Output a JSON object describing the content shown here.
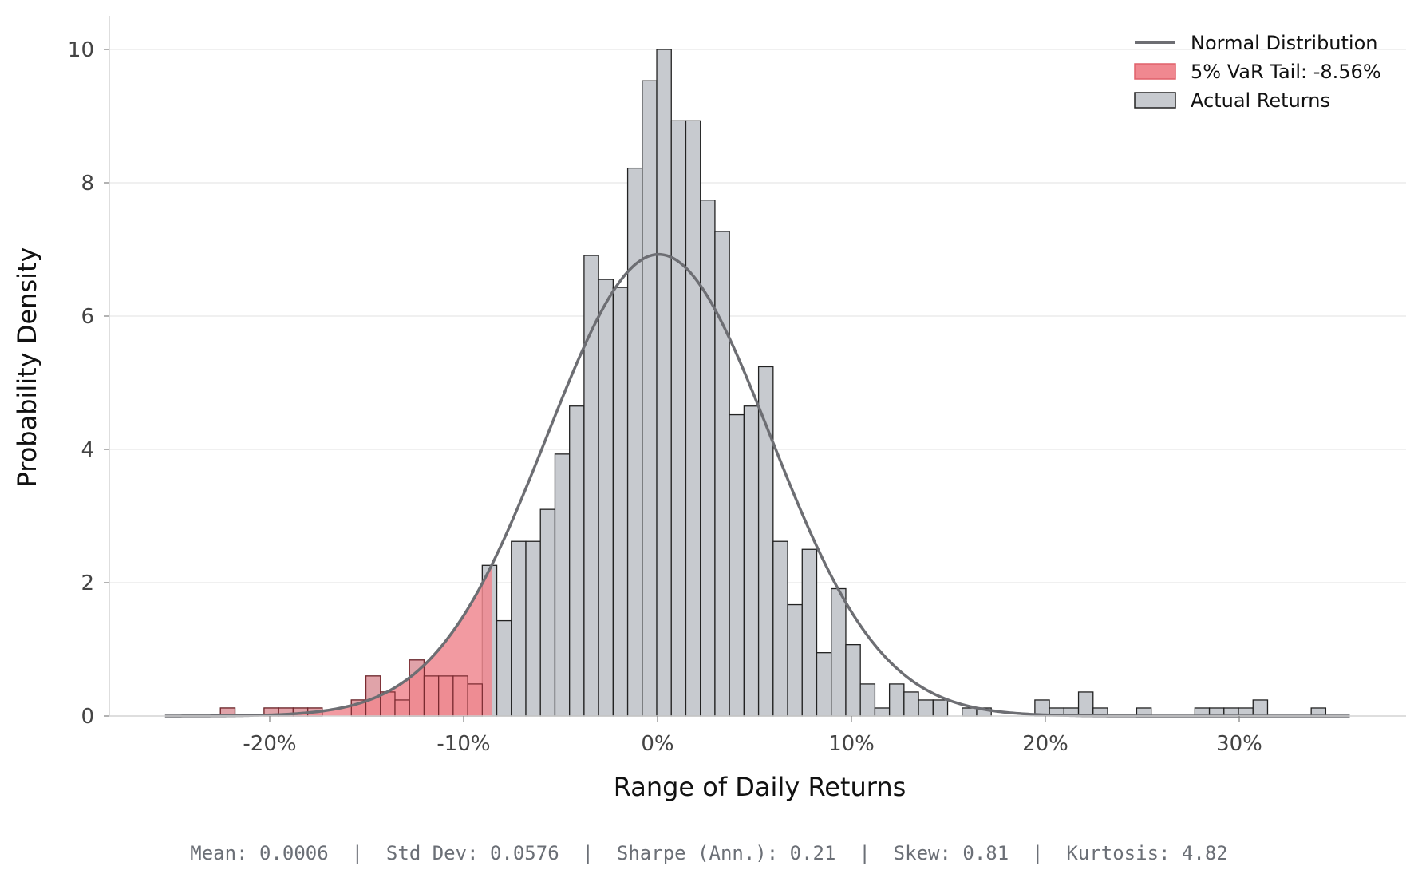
{
  "chart_data": {
    "type": "bar",
    "title": "",
    "xlabel": "Range of Daily Returns",
    "ylabel": "Probability Density",
    "xlim": [
      -0.27,
      0.38
    ],
    "ylim": [
      0,
      10.5
    ],
    "x_ticks": [
      -0.2,
      -0.1,
      0.0,
      0.1,
      0.2,
      0.3
    ],
    "x_tick_labels": [
      "-20%",
      "-10%",
      "0%",
      "10%",
      "20%",
      "30%"
    ],
    "y_ticks": [
      0,
      2,
      4,
      6,
      8,
      10
    ],
    "y_tick_labels": [
      "0",
      "2",
      "4",
      "6",
      "8",
      "10"
    ],
    "grid": "horizontal",
    "legend_position": "top-right",
    "legend": [
      {
        "label": "Normal Distribution",
        "kind": "line",
        "color": "#6d6e73"
      },
      {
        "label": "5% VaR Tail: -8.56%",
        "kind": "patch",
        "color": "#f08890"
      },
      {
        "label": "Actual Returns",
        "kind": "patch",
        "color": "#c7cacf"
      }
    ],
    "histogram": {
      "series_name": "Actual Returns",
      "bin_width": 0.0075,
      "bin_start": -0.2254,
      "densities": [
        0.12,
        0,
        0,
        0.12,
        0.12,
        0.12,
        0.12,
        0,
        0,
        0.24,
        0.6,
        0.36,
        0.24,
        0.84,
        0.6,
        0.6,
        0.6,
        0.48,
        2.26,
        1.43,
        2.62,
        2.62,
        3.1,
        3.93,
        4.65,
        6.91,
        6.55,
        6.43,
        8.22,
        9.53,
        10.0,
        8.93,
        8.93,
        7.74,
        7.27,
        4.52,
        4.65,
        5.24,
        2.62,
        1.67,
        2.5,
        0.95,
        1.91,
        1.07,
        0.48,
        0.12,
        0.48,
        0.36,
        0.24,
        0.24,
        0,
        0.12,
        0.12,
        0,
        0,
        0,
        0.24,
        0.12,
        0.12,
        0.36,
        0.12,
        0,
        0,
        0.12,
        0,
        0,
        0,
        0.12,
        0.12,
        0.12,
        0.12,
        0.24,
        0,
        0,
        0,
        0.12
      ],
      "fill_color": "#c7cacf",
      "edge_color": "#222222"
    },
    "var_tail": {
      "label": "5% VaR Tail: -8.56%",
      "threshold": -0.0856,
      "fill_color": "#f08890"
    },
    "normal_curve": {
      "series_name": "Normal Distribution",
      "mean": 0.0006,
      "std": 0.0576,
      "x_range": [
        -0.254,
        0.357
      ],
      "color": "#6d6e73"
    },
    "stats": {
      "mean": "0.0006",
      "std_dev": "0.0576",
      "sharpe_ann": "0.21",
      "skew": "0.81",
      "kurtosis": "4.82"
    }
  },
  "footer": {
    "stats_text": "Mean: 0.0006  |  Std Dev: 0.0576  |  Sharpe (Ann.): 0.21  |  Skew: 0.81  |  Kurtosis: 4.82"
  }
}
